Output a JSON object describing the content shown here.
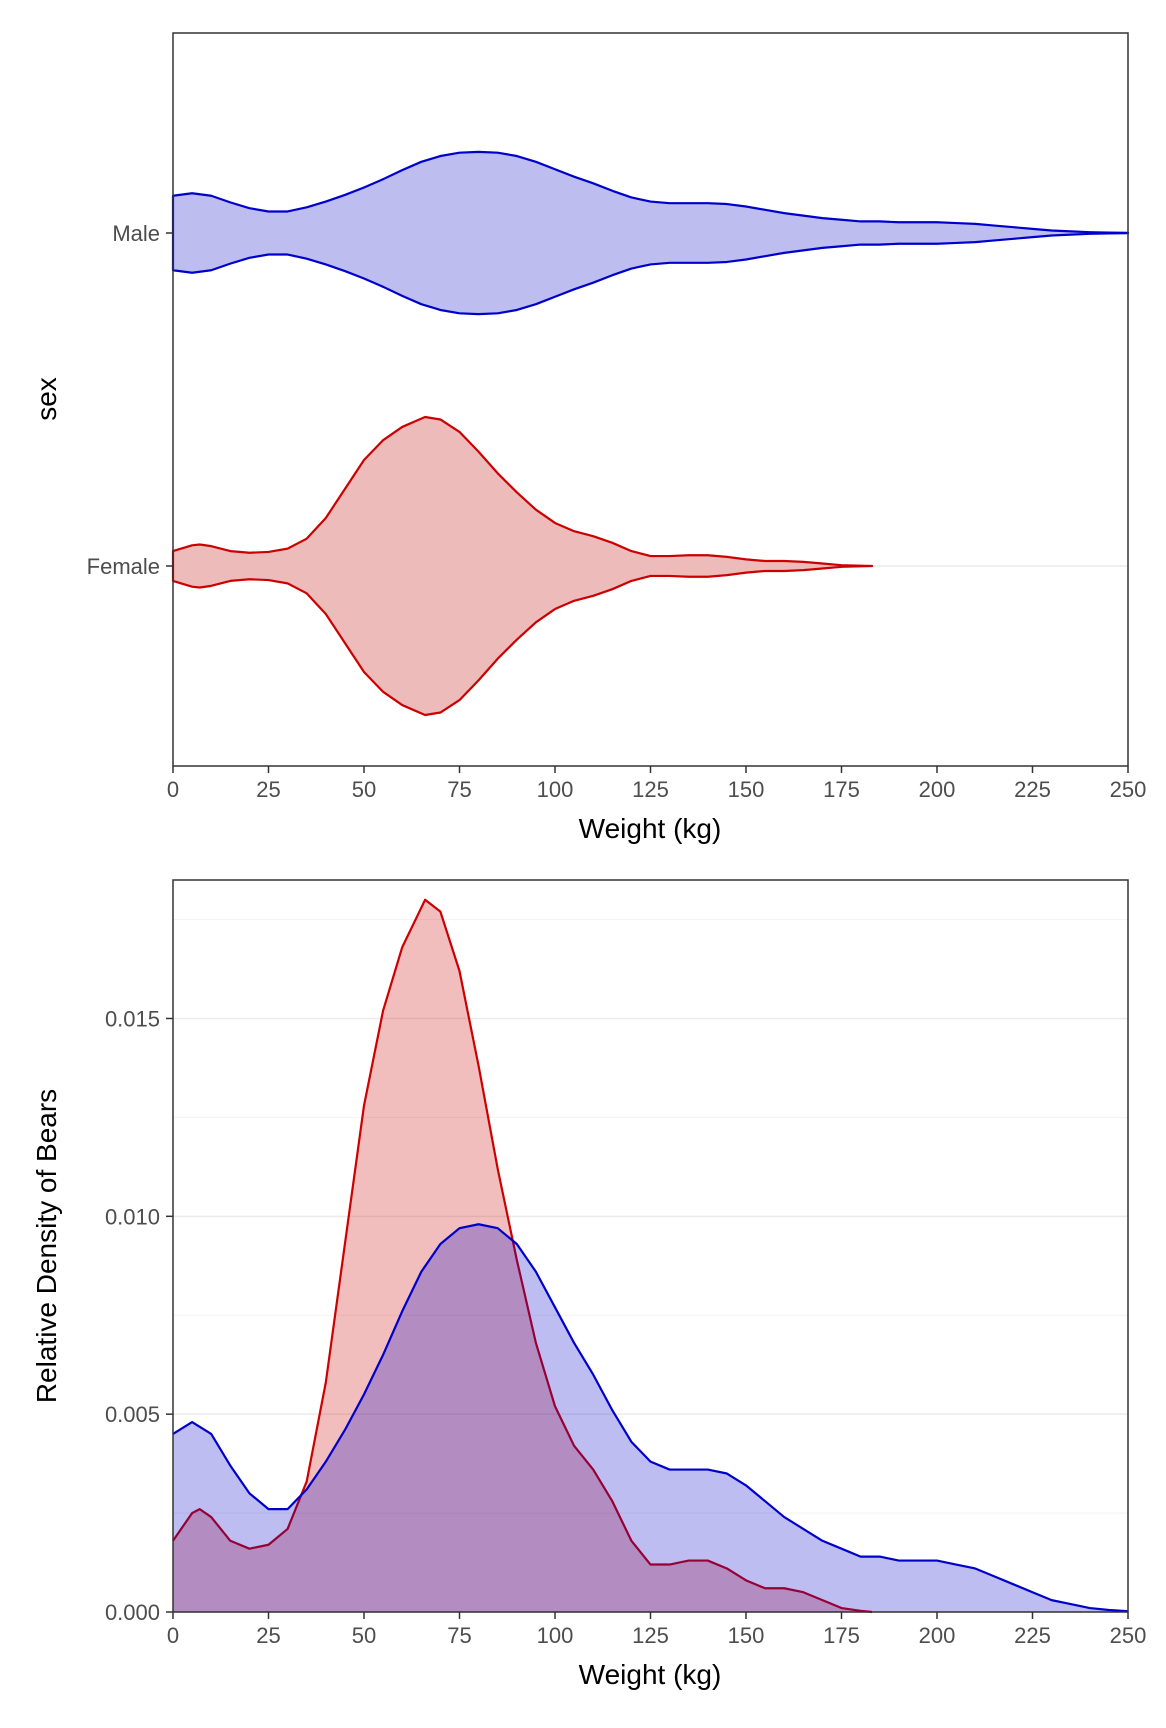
{
  "chart_data": [
    {
      "type": "violin",
      "title": "",
      "xlabel": "Weight (kg)",
      "ylabel": "sex",
      "xlim": [
        0,
        250
      ],
      "xticks": [
        "0",
        "25",
        "50",
        "75",
        "100",
        "125",
        "150",
        "175",
        "200",
        "225",
        "250"
      ],
      "categories": [
        "Male",
        "Female"
      ],
      "grid": "major horizontal lines only",
      "legend": "none",
      "series": [
        {
          "name": "Male",
          "color": "#0000CC",
          "fill": "#BDBDF0",
          "x": [
            0,
            5,
            10,
            15,
            20,
            25,
            30,
            35,
            40,
            45,
            50,
            55,
            60,
            65,
            70,
            75,
            80,
            85,
            90,
            95,
            100,
            105,
            110,
            115,
            120,
            125,
            130,
            135,
            140,
            145,
            150,
            155,
            160,
            165,
            170,
            175,
            180,
            185,
            190,
            195,
            200,
            205,
            210,
            215,
            220,
            225,
            230,
            235,
            240,
            245,
            250
          ],
          "density": [
            0.0045,
            0.0048,
            0.0045,
            0.0037,
            0.003,
            0.0026,
            0.0026,
            0.0031,
            0.0038,
            0.0046,
            0.0055,
            0.0065,
            0.0076,
            0.0086,
            0.0093,
            0.0097,
            0.0098,
            0.0097,
            0.0093,
            0.0086,
            0.0077,
            0.0068,
            0.006,
            0.0051,
            0.0043,
            0.0038,
            0.0036,
            0.0036,
            0.0036,
            0.0035,
            0.0032,
            0.0028,
            0.0024,
            0.0021,
            0.0018,
            0.0016,
            0.0014,
            0.0014,
            0.0013,
            0.0013,
            0.0013,
            0.0012,
            0.0011,
            0.0009,
            0.0007,
            0.0005,
            0.0003,
            0.0002,
            0.0001,
            5e-05,
            2e-05
          ]
        },
        {
          "name": "Female",
          "color": "#CC0000",
          "fill": "#EEBBBB",
          "x": [
            0,
            5,
            7,
            10,
            15,
            20,
            25,
            30,
            35,
            40,
            45,
            50,
            55,
            60,
            65,
            66,
            70,
            75,
            80,
            85,
            90,
            95,
            100,
            105,
            110,
            115,
            120,
            125,
            130,
            135,
            140,
            145,
            150,
            155,
            160,
            165,
            170,
            175,
            180,
            183
          ],
          "density": [
            0.0018,
            0.0025,
            0.0026,
            0.0024,
            0.0018,
            0.0016,
            0.0017,
            0.0021,
            0.0033,
            0.0058,
            0.0093,
            0.0128,
            0.0152,
            0.0168,
            0.0178,
            0.018,
            0.0177,
            0.0162,
            0.0138,
            0.0112,
            0.0089,
            0.0068,
            0.0052,
            0.0042,
            0.0036,
            0.0028,
            0.0018,
            0.0012,
            0.0012,
            0.0013,
            0.0013,
            0.0011,
            0.0008,
            0.0006,
            0.0006,
            0.0005,
            0.0003,
            0.0001,
            3e-05,
            0.0
          ]
        }
      ]
    },
    {
      "type": "area",
      "title": "",
      "xlabel": "Weight (kg)",
      "ylabel": "Relative Density of Bears",
      "xlim": [
        0,
        250
      ],
      "ylim": [
        0,
        0.0185
      ],
      "xticks": [
        "0",
        "25",
        "50",
        "75",
        "100",
        "125",
        "150",
        "175",
        "200",
        "225",
        "250"
      ],
      "yticks": [
        "0.000",
        "0.005",
        "0.010",
        "0.015"
      ],
      "grid": "horizontal major and minor lines",
      "legend": "none",
      "series": [
        {
          "name": "Male",
          "ref": "same density values as the Male violin"
        },
        {
          "name": "Female",
          "ref": "same density values as the Female violin"
        }
      ]
    }
  ]
}
